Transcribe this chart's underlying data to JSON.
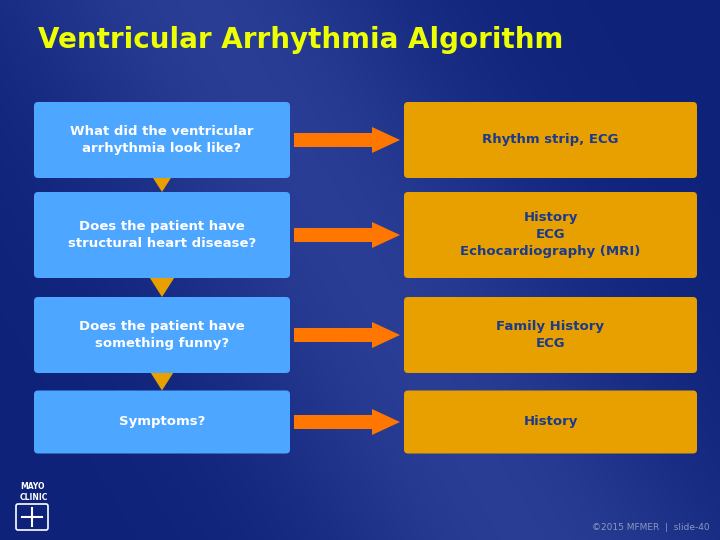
{
  "title": "Ventricular Arrhythmia Algorithm",
  "title_color": "#EEFF00",
  "title_fontsize": 20,
  "bg_color1": "#0d2278",
  "bg_color2": "#1a3aaa",
  "bg_highlight": "#6070cc",
  "left_boxes": [
    "What did the ventricular\narrhythmia look like?",
    "Does the patient have\nstructural heart disease?",
    "Does the patient have\nsomething funny?",
    "Symptoms?"
  ],
  "right_boxes": [
    "Rhythm strip, ECG",
    "History\nECG\nEchocardiography (MRI)",
    "Family History\nECG",
    "History"
  ],
  "left_box_color": "#4da6ff",
  "right_box_color": "#E8A000",
  "left_text_color": "#FFFFFF",
  "right_text_color": "#1a3a8c",
  "down_arrow_color": "#E8A000",
  "right_arrow_color": "#FF7700",
  "footer_text": "©2015 MFMER  |  slide-40",
  "footer_color": "#8899bb"
}
